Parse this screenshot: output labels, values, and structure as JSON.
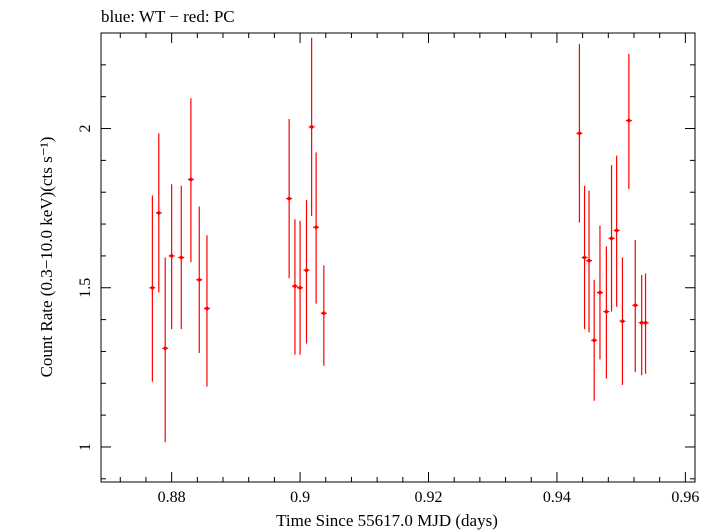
{
  "chart_data": {
    "type": "scatter",
    "title": "blue: WT − red: PC",
    "xlabel": "Time Since 55617.0 MJD (days)",
    "ylabel": "Count Rate (0.3−10.0 keV)(cts s⁻¹)",
    "xlim": [
      0.869,
      0.9615
    ],
    "ylim": [
      0.89,
      2.3
    ],
    "xticks": [
      0.88,
      0.9,
      0.92,
      0.94,
      0.96
    ],
    "xtick_labels": [
      "0.88",
      "0.9",
      "0.92",
      "0.94",
      "0.96"
    ],
    "yticks": [
      1,
      1.5,
      2
    ],
    "ytick_labels": [
      "1",
      "1.5",
      "2"
    ],
    "grid": false,
    "series": [
      {
        "name": "PC",
        "color": "#ff0000",
        "points": [
          {
            "x": 0.877,
            "y": 1.5,
            "ylo": 1.205,
            "yhi": 1.79
          },
          {
            "x": 0.878,
            "y": 1.735,
            "ylo": 1.485,
            "yhi": 1.985
          },
          {
            "x": 0.879,
            "y": 1.31,
            "ylo": 1.015,
            "yhi": 1.595
          },
          {
            "x": 0.88,
            "y": 1.6,
            "ylo": 1.37,
            "yhi": 1.825
          },
          {
            "x": 0.8815,
            "y": 1.595,
            "ylo": 1.37,
            "yhi": 1.82
          },
          {
            "x": 0.883,
            "y": 1.84,
            "ylo": 1.58,
            "yhi": 2.095
          },
          {
            "x": 0.8843,
            "y": 1.525,
            "ylo": 1.295,
            "yhi": 1.755
          },
          {
            "x": 0.8855,
            "y": 1.435,
            "ylo": 1.19,
            "yhi": 1.665
          },
          {
            "x": 0.8983,
            "y": 1.78,
            "ylo": 1.53,
            "yhi": 2.03
          },
          {
            "x": 0.8992,
            "y": 1.505,
            "ylo": 1.29,
            "yhi": 1.715
          },
          {
            "x": 0.9,
            "y": 1.5,
            "ylo": 1.29,
            "yhi": 1.71
          },
          {
            "x": 0.901,
            "y": 1.555,
            "ylo": 1.325,
            "yhi": 1.775
          },
          {
            "x": 0.9018,
            "y": 2.005,
            "ylo": 1.725,
            "yhi": 2.285
          },
          {
            "x": 0.9025,
            "y": 1.69,
            "ylo": 1.45,
            "yhi": 1.925
          },
          {
            "x": 0.9037,
            "y": 1.42,
            "ylo": 1.255,
            "yhi": 1.57
          },
          {
            "x": 0.9435,
            "y": 1.985,
            "ylo": 1.705,
            "yhi": 2.265
          },
          {
            "x": 0.9443,
            "y": 1.595,
            "ylo": 1.37,
            "yhi": 1.82
          },
          {
            "x": 0.945,
            "y": 1.585,
            "ylo": 1.36,
            "yhi": 1.805
          },
          {
            "x": 0.9458,
            "y": 1.335,
            "ylo": 1.145,
            "yhi": 1.525
          },
          {
            "x": 0.9467,
            "y": 1.485,
            "ylo": 1.275,
            "yhi": 1.695
          },
          {
            "x": 0.9477,
            "y": 1.425,
            "ylo": 1.215,
            "yhi": 1.63
          },
          {
            "x": 0.9485,
            "y": 1.655,
            "ylo": 1.425,
            "yhi": 1.885
          },
          {
            "x": 0.9493,
            "y": 1.68,
            "ylo": 1.44,
            "yhi": 1.915
          },
          {
            "x": 0.9502,
            "y": 1.395,
            "ylo": 1.195,
            "yhi": 1.595
          },
          {
            "x": 0.9512,
            "y": 2.025,
            "ylo": 1.81,
            "yhi": 2.235
          },
          {
            "x": 0.9522,
            "y": 1.445,
            "ylo": 1.235,
            "yhi": 1.65
          },
          {
            "x": 0.9532,
            "y": 1.39,
            "ylo": 1.225,
            "yhi": 1.54
          },
          {
            "x": 0.9538,
            "y": 1.39,
            "ylo": 1.23,
            "yhi": 1.545
          }
        ]
      }
    ]
  }
}
